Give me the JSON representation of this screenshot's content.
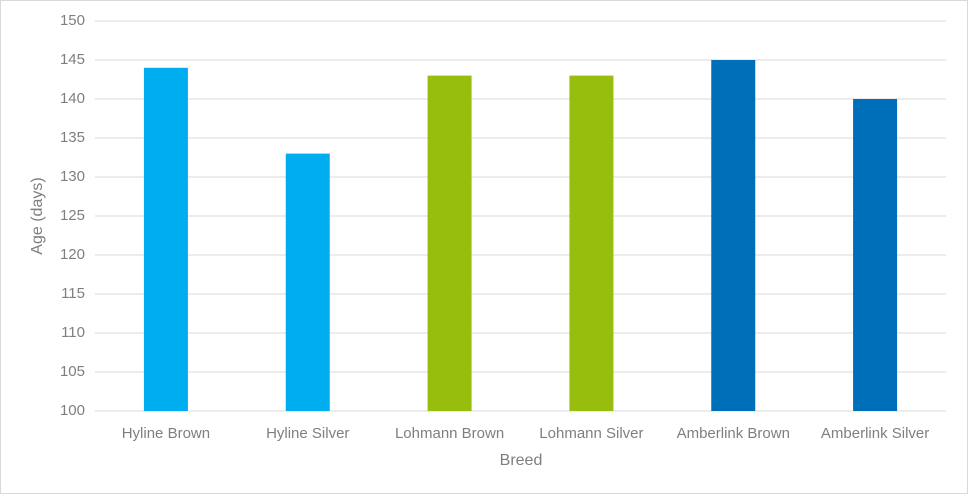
{
  "chart_data": {
    "type": "bar",
    "x_label": "Breed",
    "y_label": "Age (days)",
    "categories": [
      "Hyline Brown",
      "Hyline Silver",
      "Lohmann Brown",
      "Lohmann Silver",
      "Amberlink Brown",
      "Amberlink Silver"
    ],
    "values": [
      144,
      133,
      143,
      143,
      145,
      140
    ],
    "colors": [
      "#00aeef",
      "#00aeef",
      "#97bd0d",
      "#97bd0d",
      "#006fba",
      "#006fba"
    ],
    "ylim": [
      100,
      150
    ],
    "yticks": [
      100,
      105,
      110,
      115,
      120,
      125,
      130,
      135,
      140,
      145,
      150
    ],
    "grid": true
  }
}
